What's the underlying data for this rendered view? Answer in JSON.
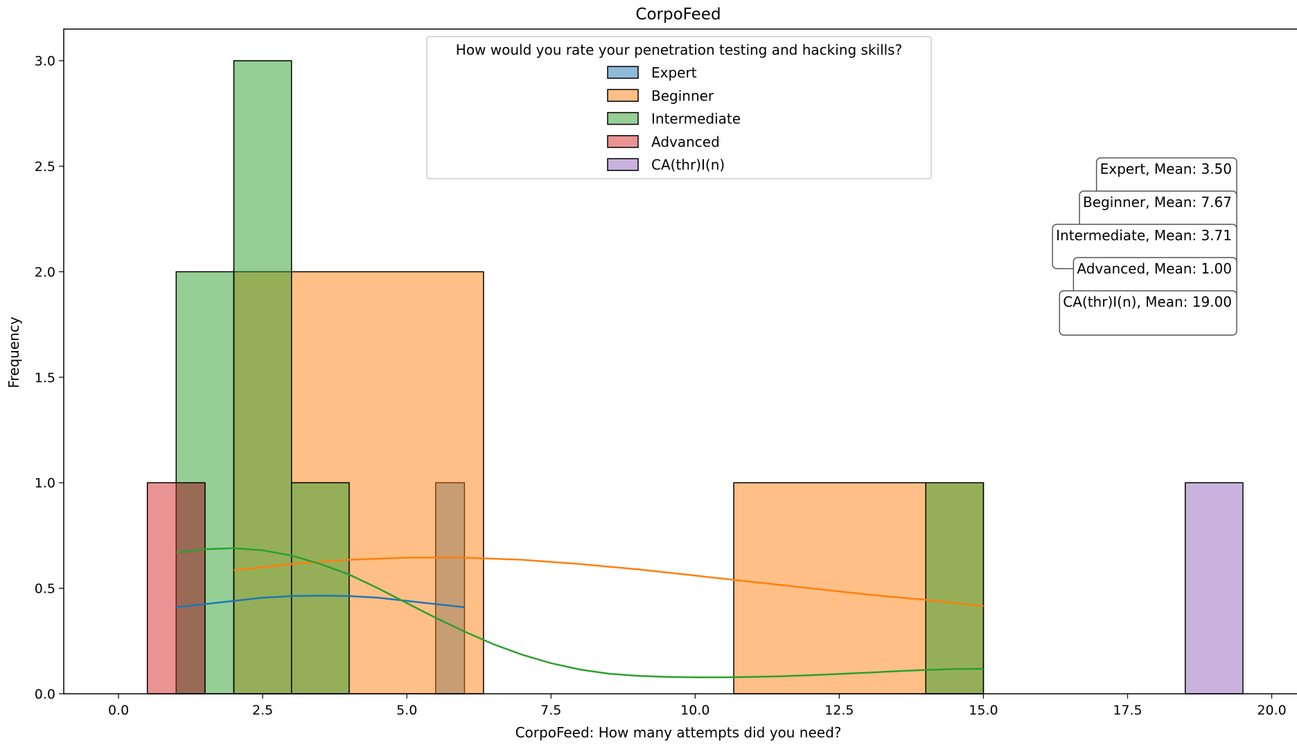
{
  "chart_data": {
    "type": "histogram",
    "title": "CorpoFeed",
    "xlabel": "CorpoFeed: How many attempts did you need?",
    "ylabel": "Frequency",
    "xlim": [
      -0.95,
      20.45
    ],
    "ylim": [
      0,
      3.15
    ],
    "x_ticks": [
      {
        "value": 0,
        "label": "0.0"
      },
      {
        "value": 2.5,
        "label": "2.5"
      },
      {
        "value": 5,
        "label": "5.0"
      },
      {
        "value": 7.5,
        "label": "7.5"
      },
      {
        "value": 10,
        "label": "10.0"
      },
      {
        "value": 12.5,
        "label": "12.5"
      },
      {
        "value": 15,
        "label": "15.0"
      },
      {
        "value": 17.5,
        "label": "17.5"
      },
      {
        "value": 20,
        "label": "20.0"
      }
    ],
    "y_ticks": [
      {
        "value": 0,
        "label": "0.0"
      },
      {
        "value": 0.5,
        "label": "0.5"
      },
      {
        "value": 1,
        "label": "1.0"
      },
      {
        "value": 1.5,
        "label": "1.5"
      },
      {
        "value": 2,
        "label": "2.0"
      },
      {
        "value": 2.5,
        "label": "2.5"
      },
      {
        "value": 3,
        "label": "3.0"
      }
    ],
    "legend": {
      "title": "How would you rate your penetration testing and hacking skills?",
      "placement": "upper-center"
    },
    "series": [
      {
        "name": "Expert",
        "color": "#1f77b4",
        "bins": [
          {
            "x0": 1.0,
            "x1": 1.5,
            "count": 1
          },
          {
            "x0": 1.5,
            "x1": 2.0,
            "count": 0
          },
          {
            "x0": 2.0,
            "x1": 2.5,
            "count": 0
          },
          {
            "x0": 2.5,
            "x1": 3.0,
            "count": 0
          },
          {
            "x0": 3.0,
            "x1": 3.5,
            "count": 0
          },
          {
            "x0": 3.5,
            "x1": 4.0,
            "count": 0
          },
          {
            "x0": 4.0,
            "x1": 4.5,
            "count": 0
          },
          {
            "x0": 4.5,
            "x1": 5.0,
            "count": 0
          },
          {
            "x0": 5.0,
            "x1": 5.5,
            "count": 0
          },
          {
            "x0": 5.5,
            "x1": 6.0,
            "count": 1
          }
        ],
        "kde": [
          [
            1.0,
            0.41
          ],
          [
            1.5,
            0.425
          ],
          [
            2.0,
            0.44
          ],
          [
            2.5,
            0.455
          ],
          [
            3.0,
            0.463
          ],
          [
            3.5,
            0.465
          ],
          [
            4.0,
            0.463
          ],
          [
            4.5,
            0.455
          ],
          [
            5.0,
            0.44
          ],
          [
            5.5,
            0.425
          ],
          [
            6.0,
            0.41
          ]
        ],
        "mean_label": "Expert, Mean: 3.50"
      },
      {
        "name": "Beginner",
        "color": "#ff7f0e",
        "bins": [
          {
            "x0": 2.0,
            "x1": 6.33,
            "count": 2
          },
          {
            "x0": 6.33,
            "x1": 10.67,
            "count": 0
          },
          {
            "x0": 10.67,
            "x1": 15.0,
            "count": 1
          }
        ],
        "kde": [
          [
            2.0,
            0.585
          ],
          [
            3.0,
            0.615
          ],
          [
            4.0,
            0.635
          ],
          [
            5.0,
            0.645
          ],
          [
            6.0,
            0.645
          ],
          [
            7.0,
            0.635
          ],
          [
            8.0,
            0.615
          ],
          [
            9.0,
            0.59
          ],
          [
            10.0,
            0.56
          ],
          [
            11.0,
            0.53
          ],
          [
            12.0,
            0.5
          ],
          [
            13.0,
            0.47
          ],
          [
            14.0,
            0.445
          ],
          [
            15.0,
            0.415
          ]
        ],
        "mean_label": "Beginner, Mean: 7.67"
      },
      {
        "name": "Intermediate",
        "color": "#2ca02c",
        "bins": [
          {
            "x0": 1.0,
            "x1": 2.0,
            "count": 2
          },
          {
            "x0": 2.0,
            "x1": 3.0,
            "count": 3
          },
          {
            "x0": 3.0,
            "x1": 4.0,
            "count": 1
          },
          {
            "x0": 4.0,
            "x1": 5.0,
            "count": 0
          },
          {
            "x0": 5.0,
            "x1": 6.0,
            "count": 0
          },
          {
            "x0": 6.0,
            "x1": 7.0,
            "count": 0
          },
          {
            "x0": 7.0,
            "x1": 8.0,
            "count": 0
          },
          {
            "x0": 8.0,
            "x1": 9.0,
            "count": 0
          },
          {
            "x0": 9.0,
            "x1": 10.0,
            "count": 0
          },
          {
            "x0": 10.0,
            "x1": 11.0,
            "count": 0
          },
          {
            "x0": 11.0,
            "x1": 12.0,
            "count": 0
          },
          {
            "x0": 12.0,
            "x1": 13.0,
            "count": 0
          },
          {
            "x0": 13.0,
            "x1": 14.0,
            "count": 0
          },
          {
            "x0": 14.0,
            "x1": 15.0,
            "count": 1
          }
        ],
        "kde": [
          [
            1.0,
            0.67
          ],
          [
            1.5,
            0.685
          ],
          [
            2.0,
            0.69
          ],
          [
            2.5,
            0.68
          ],
          [
            3.0,
            0.655
          ],
          [
            3.5,
            0.615
          ],
          [
            4.0,
            0.565
          ],
          [
            4.5,
            0.5
          ],
          [
            5.0,
            0.43
          ],
          [
            5.5,
            0.36
          ],
          [
            6.0,
            0.295
          ],
          [
            6.5,
            0.235
          ],
          [
            7.0,
            0.185
          ],
          [
            7.5,
            0.145
          ],
          [
            8.0,
            0.115
          ],
          [
            8.5,
            0.095
          ],
          [
            9.0,
            0.085
          ],
          [
            9.5,
            0.08
          ],
          [
            10.0,
            0.078
          ],
          [
            10.5,
            0.078
          ],
          [
            11.0,
            0.08
          ],
          [
            11.5,
            0.083
          ],
          [
            12.0,
            0.088
          ],
          [
            12.5,
            0.094
          ],
          [
            13.0,
            0.1
          ],
          [
            13.5,
            0.107
          ],
          [
            14.0,
            0.113
          ],
          [
            14.5,
            0.117
          ],
          [
            15.0,
            0.118
          ]
        ],
        "mean_label": "Intermediate, Mean: 3.71"
      },
      {
        "name": "Advanced",
        "color": "#d62728",
        "bins": [
          {
            "x0": 0.5,
            "x1": 1.5,
            "count": 1
          }
        ],
        "kde": [],
        "mean_label": "Advanced, Mean: 1.00"
      },
      {
        "name": "CA(thr)I(n)",
        "color": "#9467bd",
        "bins": [
          {
            "x0": 18.5,
            "x1": 19.5,
            "count": 1
          }
        ],
        "kde": [],
        "mean_label": "CA(thr)I(n), Mean: 19.00"
      }
    ]
  }
}
